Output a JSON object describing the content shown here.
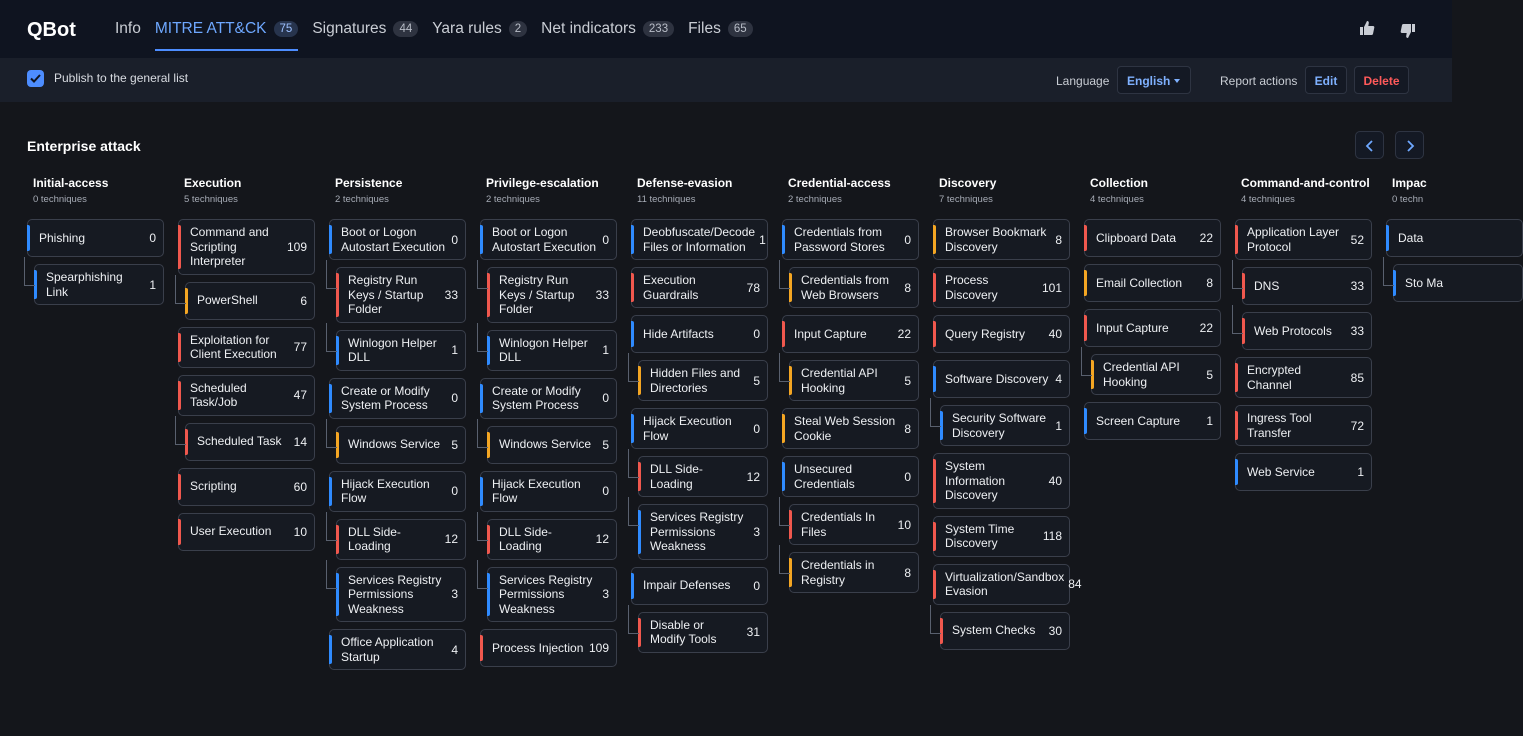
{
  "app": {
    "title": "QBot",
    "tabs": [
      {
        "label": "Info",
        "count": ""
      },
      {
        "label": "MITRE ATT&CK",
        "count": "75"
      },
      {
        "label": "Signatures",
        "count": "44"
      },
      {
        "label": "Yara rules",
        "count": "2"
      },
      {
        "label": "Net indicators",
        "count": "233"
      },
      {
        "label": "Files",
        "count": "65"
      }
    ],
    "active_tab": 1
  },
  "toolbar": {
    "publish_label": "Publish to the general list",
    "publish_checked": true,
    "language_label": "Language",
    "language_value": "English",
    "report_actions_label": "Report actions",
    "edit_label": "Edit",
    "delete_label": "Delete"
  },
  "section": {
    "title": "Enterprise attack"
  },
  "colors": {
    "blue": "#2f8bff",
    "red": "#f0584e",
    "orange": "#f4a623",
    "accent": "#4d8dff"
  },
  "tactics": [
    {
      "name": "Initial-access",
      "count_label": "0 techniques",
      "items": [
        {
          "label": "Phishing",
          "count": "0",
          "color": "blue",
          "child": false
        },
        {
          "label": "Spearphishing Link",
          "count": "1",
          "color": "blue",
          "child": true
        }
      ]
    },
    {
      "name": "Execution",
      "count_label": "5 techniques",
      "items": [
        {
          "label": "Command and Scripting Interpreter",
          "count": "109",
          "color": "red",
          "child": false
        },
        {
          "label": "PowerShell",
          "count": "6",
          "color": "orange",
          "child": true
        },
        {
          "label": "Exploitation for Client Execution",
          "count": "77",
          "color": "red",
          "child": false
        },
        {
          "label": "Scheduled Task/Job",
          "count": "47",
          "color": "red",
          "child": false
        },
        {
          "label": "Scheduled Task",
          "count": "14",
          "color": "red",
          "child": true
        },
        {
          "label": "Scripting",
          "count": "60",
          "color": "red",
          "child": false
        },
        {
          "label": "User Execution",
          "count": "10",
          "color": "red",
          "child": false
        }
      ]
    },
    {
      "name": "Persistence",
      "count_label": "2 techniques",
      "items": [
        {
          "label": "Boot or Logon Autostart Execution",
          "count": "0",
          "color": "blue",
          "child": false
        },
        {
          "label": "Registry Run Keys / Startup Folder",
          "count": "33",
          "color": "red",
          "child": true
        },
        {
          "label": "Winlogon Helper DLL",
          "count": "1",
          "color": "blue",
          "child": true
        },
        {
          "label": "Create or Modify System Process",
          "count": "0",
          "color": "blue",
          "child": false
        },
        {
          "label": "Windows Service",
          "count": "5",
          "color": "orange",
          "child": true
        },
        {
          "label": "Hijack Execution Flow",
          "count": "0",
          "color": "blue",
          "child": false
        },
        {
          "label": "DLL Side-Loading",
          "count": "12",
          "color": "red",
          "child": true
        },
        {
          "label": "Services Registry Permissions Weakness",
          "count": "3",
          "color": "blue",
          "child": true
        },
        {
          "label": "Office Application Startup",
          "count": "4",
          "color": "blue",
          "child": false
        }
      ]
    },
    {
      "name": "Privilege-escalation",
      "count_label": "2 techniques",
      "items": [
        {
          "label": "Boot or Logon Autostart Execution",
          "count": "0",
          "color": "blue",
          "child": false
        },
        {
          "label": "Registry Run Keys / Startup Folder",
          "count": "33",
          "color": "red",
          "child": true
        },
        {
          "label": "Winlogon Helper DLL",
          "count": "1",
          "color": "blue",
          "child": true
        },
        {
          "label": "Create or Modify System Process",
          "count": "0",
          "color": "blue",
          "child": false
        },
        {
          "label": "Windows Service",
          "count": "5",
          "color": "orange",
          "child": true
        },
        {
          "label": "Hijack Execution Flow",
          "count": "0",
          "color": "blue",
          "child": false
        },
        {
          "label": "DLL Side-Loading",
          "count": "12",
          "color": "red",
          "child": true
        },
        {
          "label": "Services Registry Permissions Weakness",
          "count": "3",
          "color": "blue",
          "child": true
        },
        {
          "label": "Process Injection",
          "count": "109",
          "color": "red",
          "child": false
        }
      ]
    },
    {
      "name": "Defense-evasion",
      "count_label": "11 techniques",
      "items": [
        {
          "label": "Deobfuscate/Decode Files or Information",
          "count": "1",
          "color": "blue",
          "child": false
        },
        {
          "label": "Execution Guardrails",
          "count": "78",
          "color": "red",
          "child": false
        },
        {
          "label": "Hide Artifacts",
          "count": "0",
          "color": "blue",
          "child": false
        },
        {
          "label": "Hidden Files and Directories",
          "count": "5",
          "color": "orange",
          "child": true
        },
        {
          "label": "Hijack Execution Flow",
          "count": "0",
          "color": "blue",
          "child": false
        },
        {
          "label": "DLL Side-Loading",
          "count": "12",
          "color": "red",
          "child": true
        },
        {
          "label": "Services Registry Permissions Weakness",
          "count": "3",
          "color": "blue",
          "child": true
        },
        {
          "label": "Impair Defenses",
          "count": "0",
          "color": "blue",
          "child": false
        },
        {
          "label": "Disable or Modify Tools",
          "count": "31",
          "color": "red",
          "child": true
        }
      ]
    },
    {
      "name": "Credential-access",
      "count_label": "2 techniques",
      "items": [
        {
          "label": "Credentials from Password Stores",
          "count": "0",
          "color": "blue",
          "child": false
        },
        {
          "label": "Credentials from Web Browsers",
          "count": "8",
          "color": "orange",
          "child": true
        },
        {
          "label": "Input Capture",
          "count": "22",
          "color": "red",
          "child": false
        },
        {
          "label": "Credential API Hooking",
          "count": "5",
          "color": "orange",
          "child": true
        },
        {
          "label": "Steal Web Session Cookie",
          "count": "8",
          "color": "orange",
          "child": false
        },
        {
          "label": "Unsecured Credentials",
          "count": "0",
          "color": "blue",
          "child": false
        },
        {
          "label": "Credentials In Files",
          "count": "10",
          "color": "red",
          "child": true
        },
        {
          "label": "Credentials in Registry",
          "count": "8",
          "color": "orange",
          "child": true
        }
      ]
    },
    {
      "name": "Discovery",
      "count_label": "7 techniques",
      "items": [
        {
          "label": "Browser Bookmark Discovery",
          "count": "8",
          "color": "orange",
          "child": false
        },
        {
          "label": "Process Discovery",
          "count": "101",
          "color": "red",
          "child": false
        },
        {
          "label": "Query Registry",
          "count": "40",
          "color": "red",
          "child": false
        },
        {
          "label": "Software Discovery",
          "count": "4",
          "color": "blue",
          "child": false
        },
        {
          "label": "Security Software Discovery",
          "count": "1",
          "color": "blue",
          "child": true
        },
        {
          "label": "System Information Discovery",
          "count": "40",
          "color": "red",
          "child": false
        },
        {
          "label": "System Time Discovery",
          "count": "118",
          "color": "red",
          "child": false
        },
        {
          "label": "Virtualization/Sandbox Evasion",
          "count": "84",
          "color": "red",
          "child": false
        },
        {
          "label": "System Checks",
          "count": "30",
          "color": "red",
          "child": true
        }
      ]
    },
    {
      "name": "Collection",
      "count_label": "4 techniques",
      "items": [
        {
          "label": "Clipboard Data",
          "count": "22",
          "color": "red",
          "child": false
        },
        {
          "label": "Email Collection",
          "count": "8",
          "color": "orange",
          "child": false
        },
        {
          "label": "Input Capture",
          "count": "22",
          "color": "red",
          "child": false
        },
        {
          "label": "Credential API Hooking",
          "count": "5",
          "color": "orange",
          "child": true
        },
        {
          "label": "Screen Capture",
          "count": "1",
          "color": "blue",
          "child": false
        }
      ]
    },
    {
      "name": "Command-and-control",
      "count_label": "4 techniques",
      "items": [
        {
          "label": "Application Layer Protocol",
          "count": "52",
          "color": "red",
          "child": false
        },
        {
          "label": "DNS",
          "count": "33",
          "color": "red",
          "child": true
        },
        {
          "label": "Web Protocols",
          "count": "33",
          "color": "red",
          "child": true
        },
        {
          "label": "Encrypted Channel",
          "count": "85",
          "color": "red",
          "child": false
        },
        {
          "label": "Ingress Tool Transfer",
          "count": "72",
          "color": "red",
          "child": false
        },
        {
          "label": "Web Service",
          "count": "1",
          "color": "blue",
          "child": false
        }
      ]
    },
    {
      "name": "Impac",
      "count_label": "0 techn",
      "items": [
        {
          "label": "Data",
          "count": "",
          "color": "blue",
          "child": false
        },
        {
          "label": "Sto Ma",
          "count": "",
          "color": "blue",
          "child": true
        }
      ]
    }
  ]
}
